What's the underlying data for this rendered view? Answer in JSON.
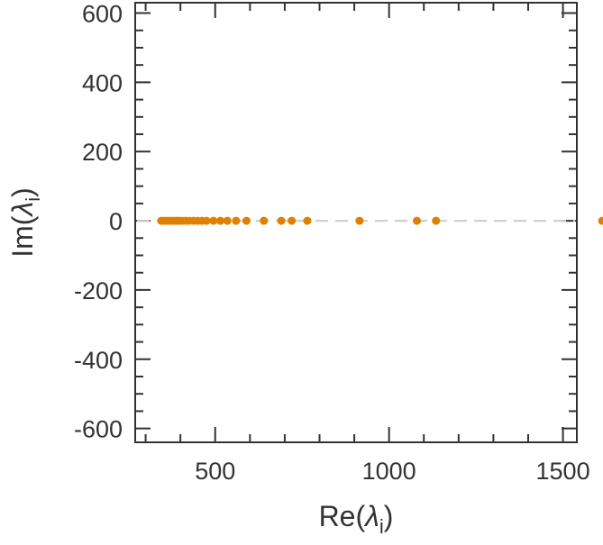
{
  "chart_data": {
    "type": "scatter",
    "title": "",
    "xlabel": {
      "base": "Re(",
      "symbol": "λ",
      "subscript": "i",
      "close": ")"
    },
    "ylabel": {
      "base": "Im(",
      "symbol": "λ",
      "subscript": "i",
      "close": ")"
    },
    "xlim": [
      270,
      1540
    ],
    "ylim": [
      -640,
      630
    ],
    "xticks": [
      500,
      1000,
      1500
    ],
    "xtick_labels": [
      "500",
      "1000",
      "1500"
    ],
    "yticks": [
      600,
      400,
      200,
      0,
      -200,
      -400,
      -600
    ],
    "ytick_labels": [
      "600",
      "400",
      "200",
      "0",
      "-200",
      "-400",
      "-600"
    ],
    "x_minor_step": 100,
    "y_minor_step": 50,
    "grid": false,
    "zero_line": {
      "y": 0,
      "style": "dashed",
      "color": "#cccccc"
    },
    "marker_color": "#e08000",
    "series": [
      {
        "x": [
          345,
          352,
          360,
          368,
          375,
          382,
          390,
          397,
          405,
          415,
          425,
          438,
          450,
          462,
          475,
          495,
          515,
          535,
          560,
          590,
          640,
          690,
          720,
          765,
          915,
          1080,
          1135,
          1613
        ],
        "y": [
          0,
          0,
          0,
          0,
          0,
          0,
          0,
          0,
          0,
          0,
          0,
          0,
          0,
          0,
          0,
          0,
          0,
          0,
          0,
          0,
          0,
          0,
          0,
          0,
          0,
          0,
          0,
          0
        ]
      }
    ]
  }
}
